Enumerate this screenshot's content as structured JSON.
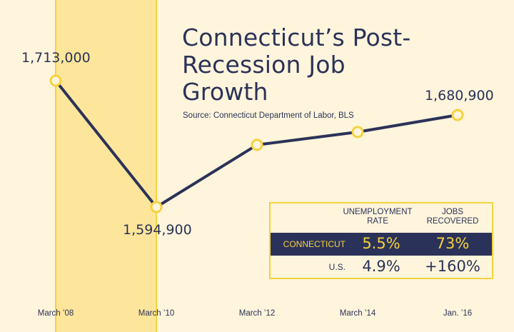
{
  "chart_data": {
    "type": "line",
    "title": "Connecticut’s Post-Recession Job Growth",
    "source": "Source: Connecticut Department of Labor, BLS",
    "x_tick_labels": [
      "March ’08",
      "March ’10",
      "March ’12",
      "March ’14",
      "Jan. ’16"
    ],
    "series": [
      {
        "values": [
          1713000,
          1594900,
          1653000,
          1665000,
          1680900
        ]
      }
    ],
    "data_labels": [
      "1,713,000",
      "1,594,900",
      "1,680,900"
    ],
    "ylim": [
      1550000,
      1750000
    ],
    "recession_shading": {
      "from_index": 0,
      "to_index": 1
    },
    "grid": false,
    "colors": {
      "line": "#2b3259",
      "marker": "#f6d23d",
      "shading": "#fde69b",
      "background": "#fff5dc"
    }
  },
  "table": {
    "headers": [
      "UNEMPLOYMENT RATE",
      "JOBS RECOVERED"
    ],
    "rows": [
      {
        "label": "CONNECTICUT",
        "unemployment": "5.5%",
        "jobs": "73%",
        "highlight": true
      },
      {
        "label": "U.S.",
        "unemployment": "4.9%",
        "jobs": "+160%",
        "highlight": false
      }
    ]
  }
}
